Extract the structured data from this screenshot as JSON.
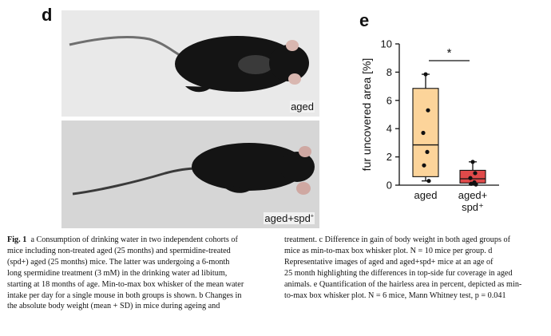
{
  "panels": {
    "d": {
      "letter": "d",
      "top_label": "aged",
      "bottom_label_main": "aged+spd",
      "bottom_label_sup": "+"
    },
    "e": {
      "letter": "e",
      "significance": "*"
    }
  },
  "chart_data": {
    "type": "box",
    "ylabel": "fur uncovered area [%]",
    "ylim": [
      0,
      10
    ],
    "yticks": [
      "0",
      "2",
      "4",
      "6",
      "8",
      "10"
    ],
    "categories": [
      "aged",
      "aged+ spd+"
    ],
    "category_labels": [
      {
        "line1": "aged",
        "line2": ""
      },
      {
        "line1": "aged+",
        "line2": "spd⁺"
      }
    ],
    "series": [
      {
        "box": {
          "min": 0.3,
          "q1": 0.6,
          "median": 2.85,
          "q3": 6.85,
          "max": 7.85
        },
        "points": [
          7.85,
          5.3,
          3.7,
          2.35,
          1.4,
          0.3
        ],
        "color": "#fcd49a"
      },
      {
        "box": {
          "min": 0.05,
          "q1": 0.15,
          "median": 0.45,
          "q3": 1.05,
          "max": 1.65
        },
        "points": [
          1.65,
          0.85,
          0.5,
          0.2,
          0.1,
          0.05
        ],
        "color": "#e04a4a"
      }
    ],
    "annotation": "*"
  },
  "caption": {
    "fig_label": "Fig. 1",
    "left_lines": [
      "a Consumption of drinking water in two independent cohorts of",
      "mice including non-treated aged (25 months) and spermidine-treated",
      "(spd+) aged (25 months) mice. The latter was undergoing a 6-month",
      "long spermidine treatment (3 mM) in the drinking water ad libitum,",
      "starting at 18 months of age. Min-to-max box whisker of the mean water",
      "intake per day for a single mouse in both groups is shown. b Changes in",
      "the absolute body weight (mean + SD) in mice during ageing and"
    ],
    "right_lines": [
      "treatment. c Difference in gain of body weight in both aged groups of",
      "mice as min-to-max box whisker plot. N = 10 mice per group. d",
      "Representative images of aged and aged+spd+ mice at an age of",
      "25 month highlighting the differences in top-side fur coverage in aged",
      "animals. e Quantification of the hairless area in percent, depicted as min-",
      "to-max box whisker plot. N = 6 mice, Mann Whitney test, p = 0.041"
    ]
  },
  "colors": {
    "aged_box": "#fcd49a",
    "spd_box": "#e04a4a",
    "mouse": "#141414"
  }
}
